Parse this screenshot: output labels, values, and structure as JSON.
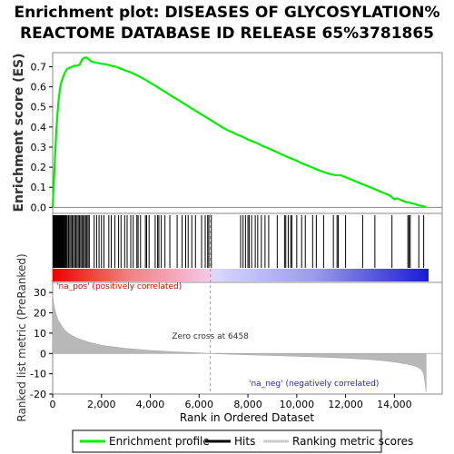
{
  "chart_data": {
    "type": "line",
    "title_line1": "Enrichment plot: DISEASES OF GLYCOSYLATION%",
    "title_line2": "REACTOME DATABASE ID RELEASE 65%3781865",
    "top_panel": {
      "ylabel": "Enrichment score (ES)",
      "ylim": [
        -0.03,
        0.77
      ],
      "yticks": [
        0.0,
        0.1,
        0.2,
        0.3,
        0.4,
        0.5,
        0.6,
        0.7
      ],
      "ytick_labels": [
        "0.0",
        "0.1",
        "0.2",
        "0.3",
        "0.4",
        "0.5",
        "0.6",
        "0.7"
      ],
      "series": [
        {
          "name": "Enrichment profile",
          "color": "#00ee00",
          "x": [
            0,
            50,
            100,
            150,
            200,
            250,
            300,
            350,
            400,
            500,
            600,
            700,
            800,
            900,
            1000,
            1100,
            1150,
            1200,
            1300,
            1400,
            1500,
            1600,
            1800,
            2000,
            2200,
            2400,
            2600,
            2800,
            3000,
            3200,
            3400,
            3600,
            3800,
            4000,
            4200,
            4400,
            4600,
            4800,
            5000,
            5200,
            5400,
            5600,
            5800,
            6000,
            6200,
            6400,
            6600,
            6800,
            7000,
            7200,
            7400,
            7600,
            7800,
            8000,
            8200,
            8400,
            8600,
            8800,
            9000,
            9200,
            9400,
            9600,
            9800,
            10000,
            10200,
            10400,
            10600,
            10800,
            11000,
            11200,
            11400,
            11600,
            11800,
            12000,
            12200,
            12400,
            12600,
            12800,
            13000,
            13200,
            13400,
            13600,
            13800,
            13900,
            14000,
            14100,
            14200,
            14300,
            14400,
            14500,
            14600,
            14700,
            14800,
            14900,
            15000,
            15100,
            15200,
            15300
          ],
          "y": [
            0.0,
            0.12,
            0.26,
            0.38,
            0.47,
            0.54,
            0.59,
            0.62,
            0.64,
            0.67,
            0.69,
            0.695,
            0.7,
            0.705,
            0.705,
            0.71,
            0.72,
            0.735,
            0.745,
            0.745,
            0.735,
            0.725,
            0.72,
            0.715,
            0.712,
            0.705,
            0.7,
            0.69,
            0.68,
            0.672,
            0.66,
            0.648,
            0.635,
            0.62,
            0.606,
            0.59,
            0.575,
            0.56,
            0.545,
            0.53,
            0.515,
            0.5,
            0.485,
            0.47,
            0.455,
            0.44,
            0.425,
            0.41,
            0.395,
            0.382,
            0.372,
            0.36,
            0.35,
            0.338,
            0.328,
            0.318,
            0.306,
            0.296,
            0.285,
            0.274,
            0.263,
            0.252,
            0.242,
            0.232,
            0.22,
            0.21,
            0.2,
            0.19,
            0.18,
            0.172,
            0.165,
            0.16,
            0.16,
            0.15,
            0.14,
            0.13,
            0.12,
            0.11,
            0.1,
            0.09,
            0.08,
            0.07,
            0.06,
            0.05,
            0.04,
            0.045,
            0.04,
            0.035,
            0.03,
            0.025,
            0.025,
            0.02,
            0.018,
            0.015,
            0.01,
            0.008,
            0.005,
            0.003
          ]
        }
      ]
    },
    "hits": [
      20,
      40,
      60,
      80,
      100,
      120,
      140,
      160,
      180,
      200,
      220,
      240,
      260,
      280,
      300,
      320,
      340,
      360,
      380,
      400,
      420,
      440,
      470,
      500,
      530,
      560,
      600,
      650,
      700,
      750,
      800,
      850,
      900,
      950,
      1000,
      1050,
      1100,
      1150,
      1200,
      1250,
      1300,
      1350,
      1400,
      1450,
      1500,
      1700,
      1800,
      1900,
      2000,
      2100,
      2300,
      2400,
      2550,
      2700,
      2800,
      2950,
      3050,
      3200,
      3300,
      3450,
      3500,
      3600,
      3800,
      3850,
      3950,
      4200,
      4300,
      4350,
      4450,
      4600,
      4800,
      5100,
      5300,
      5450,
      5550,
      5700,
      5850,
      6100,
      6250,
      6350,
      6400,
      6500,
      7700,
      7800,
      7900,
      8000,
      8050,
      8150,
      8300,
      8400,
      8550,
      8700,
      8850,
      9200,
      9500,
      9550,
      9650,
      9750,
      9800,
      10000,
      10200,
      10350,
      10650,
      10800,
      11100,
      11500,
      11650,
      11700,
      12000,
      12700,
      13200,
      13900,
      14550,
      14600,
      14650,
      15000,
      15200
    ],
    "ranked_panel": {
      "ylabel": "Ranked list metric (PreRanked)",
      "ylim": [
        -20,
        35
      ],
      "yticks": [
        -20,
        -10,
        0,
        10,
        20,
        30
      ],
      "ytick_labels": [
        "-20",
        "-10",
        "0",
        "10",
        "20",
        "30"
      ],
      "x": [
        0,
        20,
        50,
        100,
        150,
        200,
        300,
        400,
        500,
        700,
        1000,
        1500,
        2000,
        3000,
        4000,
        5000,
        6000,
        6458,
        7000,
        8000,
        9000,
        10000,
        11000,
        12000,
        13000,
        13500,
        14000,
        14500,
        14800,
        15000,
        15100,
        15200,
        15250,
        15300
      ],
      "values": [
        30,
        27,
        24,
        21,
        19,
        17,
        15,
        13,
        11.5,
        9.5,
        7.5,
        5.5,
        4.0,
        2.5,
        1.5,
        0.8,
        0.3,
        0.0,
        -0.3,
        -0.7,
        -1.0,
        -1.4,
        -1.8,
        -2.3,
        -3.0,
        -3.5,
        -4.2,
        -5.2,
        -6.0,
        -7.0,
        -8.0,
        -10.0,
        -14.0,
        -19.0
      ],
      "zero_cross_label": "Zero cross at 6458",
      "zero_cross_x": 6458,
      "pos_label": "'na_pos' (positively correlated)",
      "neg_label": "'na_neg' (negatively correlated)"
    },
    "xlabel": "Rank in Ordered Dataset",
    "xlim": [
      0,
      15400
    ],
    "xticks": [
      0,
      2000,
      4000,
      6000,
      8000,
      10000,
      12000,
      14000
    ],
    "xtick_labels": [
      "0",
      "2,000",
      "4,000",
      "6,000",
      "8,000",
      "10,000",
      "12,000",
      "14,000"
    ],
    "legend": {
      "placement": "bottom",
      "items": [
        {
          "label": "Enrichment profile",
          "color": "#00ee00"
        },
        {
          "label": "Hits",
          "color": "#000000"
        },
        {
          "label": "Ranking metric scores",
          "color": "#cccccc"
        }
      ]
    }
  }
}
